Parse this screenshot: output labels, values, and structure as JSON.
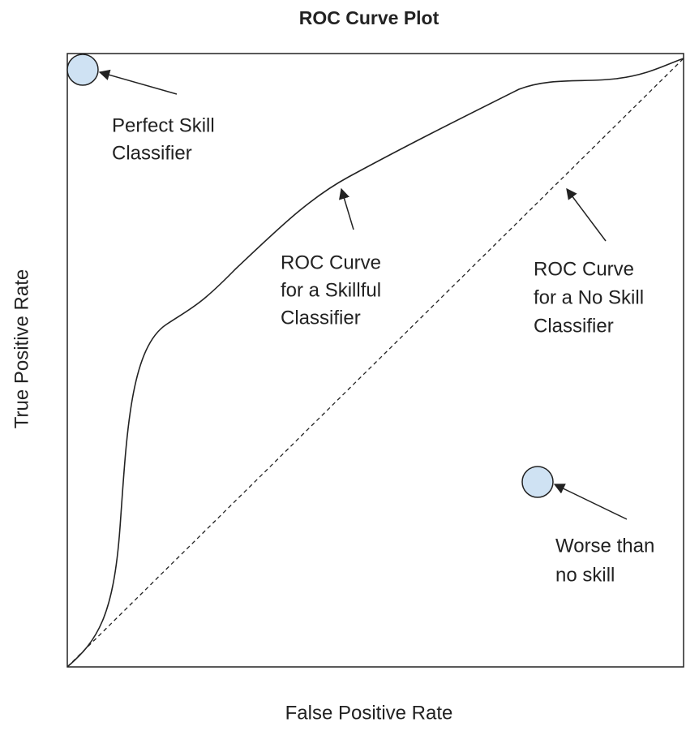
{
  "title": "ROC Curve Plot",
  "x_axis_label": "False Positive Rate",
  "y_axis_label": "True Positive Rate",
  "annotations": [
    {
      "lines": [
        "Perfect Skill",
        "Classifier"
      ]
    },
    {
      "lines": [
        "ROC Curve",
        "for a Skillful",
        "Classifier"
      ]
    },
    {
      "lines": [
        "ROC Curve",
        "for a No Skill",
        "Classifier"
      ]
    },
    {
      "lines": [
        "Worse than",
        "no skill"
      ]
    }
  ]
}
